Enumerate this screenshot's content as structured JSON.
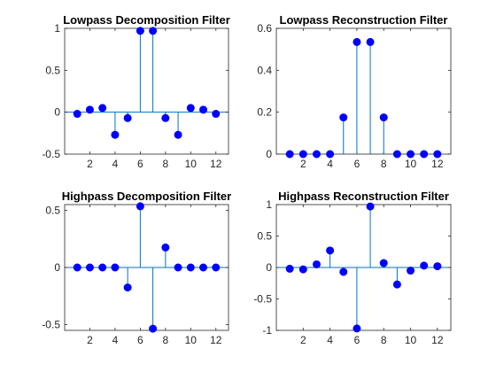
{
  "chart_data": [
    {
      "type": "stem",
      "title": "Lowpass Decomposition Filter",
      "x": [
        1,
        2,
        3,
        4,
        5,
        6,
        7,
        8,
        9,
        10,
        11,
        12
      ],
      "values": [
        -0.02,
        0.03,
        0.05,
        -0.27,
        -0.07,
        0.97,
        0.97,
        -0.07,
        -0.27,
        0.05,
        0.03,
        -0.02
      ],
      "xlim": [
        0,
        13
      ],
      "ylim": [
        -0.5,
        1
      ],
      "xticks": [
        2,
        4,
        6,
        8,
        10,
        12
      ],
      "yticks": [
        -0.5,
        0,
        0.5,
        1
      ],
      "ytick_labels": [
        "-0.5",
        "0",
        "0.5",
        "1"
      ],
      "grid": false
    },
    {
      "type": "stem",
      "title": "Lowpass Reconstruction Filter",
      "x": [
        1,
        2,
        3,
        4,
        5,
        6,
        7,
        8,
        9,
        10,
        11,
        12
      ],
      "values": [
        0,
        0,
        0,
        0,
        0.175,
        0.535,
        0.535,
        0.175,
        0,
        0,
        0,
        0
      ],
      "xlim": [
        0,
        13
      ],
      "ylim": [
        0,
        0.6
      ],
      "xticks": [
        2,
        4,
        6,
        8,
        10,
        12
      ],
      "yticks": [
        0,
        0.2,
        0.4,
        0.6
      ],
      "ytick_labels": [
        "0",
        "0.2",
        "0.4",
        "0.6"
      ],
      "grid": false
    },
    {
      "type": "stem",
      "title": "Highpass Decomposition Filter",
      "x": [
        1,
        2,
        3,
        4,
        5,
        6,
        7,
        8,
        9,
        10,
        11,
        12
      ],
      "values": [
        0,
        0,
        0,
        0,
        -0.175,
        0.535,
        -0.535,
        0.175,
        0,
        0,
        0,
        0
      ],
      "xlim": [
        0,
        13
      ],
      "ylim": [
        -0.55,
        0.55
      ],
      "xticks": [
        2,
        4,
        6,
        8,
        10,
        12
      ],
      "yticks": [
        -0.5,
        0,
        0.5
      ],
      "ytick_labels": [
        "-0.5",
        "0",
        "0.5"
      ],
      "grid": false
    },
    {
      "type": "stem",
      "title": "Highpass Reconstruction Filter",
      "x": [
        1,
        2,
        3,
        4,
        5,
        6,
        7,
        8,
        9,
        10,
        11,
        12
      ],
      "values": [
        -0.02,
        -0.03,
        0.05,
        0.27,
        -0.07,
        -0.97,
        0.97,
        0.07,
        -0.27,
        -0.05,
        0.03,
        0.02
      ],
      "xlim": [
        0,
        13
      ],
      "ylim": [
        -1,
        1
      ],
      "xticks": [
        2,
        4,
        6,
        8,
        10,
        12
      ],
      "yticks": [
        -1,
        -0.5,
        0,
        0.5,
        1
      ],
      "ytick_labels": [
        "-1",
        "-0.5",
        "0",
        "0.5",
        "1"
      ],
      "grid": false
    }
  ],
  "colors": {
    "stem": "#0072BD",
    "marker": "#0000FF",
    "axes": "#262626"
  }
}
